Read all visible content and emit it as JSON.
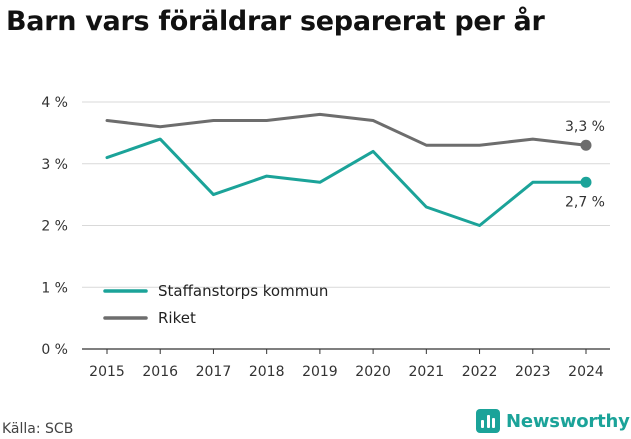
{
  "title": "Barn vars föräldrar separerat per år",
  "source": "Källa: SCB",
  "brand": "Newsworthy",
  "colors": {
    "kommun": "#1ba399",
    "riket": "#6d6d6d",
    "grid": "#d9d9d9",
    "axis": "#333333"
  },
  "chart_data": {
    "type": "line",
    "x": [
      "2015",
      "2016",
      "2017",
      "2018",
      "2019",
      "2020",
      "2021",
      "2022",
      "2023",
      "2024"
    ],
    "ylim": [
      0,
      4
    ],
    "yticks": [
      {
        "value": 0,
        "label": "0 %"
      },
      {
        "value": 1,
        "label": "1 %"
      },
      {
        "value": 2,
        "label": "2 %"
      },
      {
        "value": 3,
        "label": "3 %"
      },
      {
        "value": 4,
        "label": "4 %"
      }
    ],
    "grid": true,
    "legend": "bottom-left",
    "series": [
      {
        "name": "Staffanstorps kommun",
        "color": "#1ba399",
        "values": [
          3.1,
          3.4,
          2.5,
          2.8,
          2.7,
          3.2,
          2.3,
          2.0,
          2.7,
          2.7
        ],
        "end_label": "2,7 %"
      },
      {
        "name": "Riket",
        "color": "#6d6d6d",
        "values": [
          3.7,
          3.6,
          3.7,
          3.7,
          3.8,
          3.7,
          3.3,
          3.3,
          3.4,
          3.3
        ],
        "end_label": "3,3 %"
      }
    ]
  }
}
